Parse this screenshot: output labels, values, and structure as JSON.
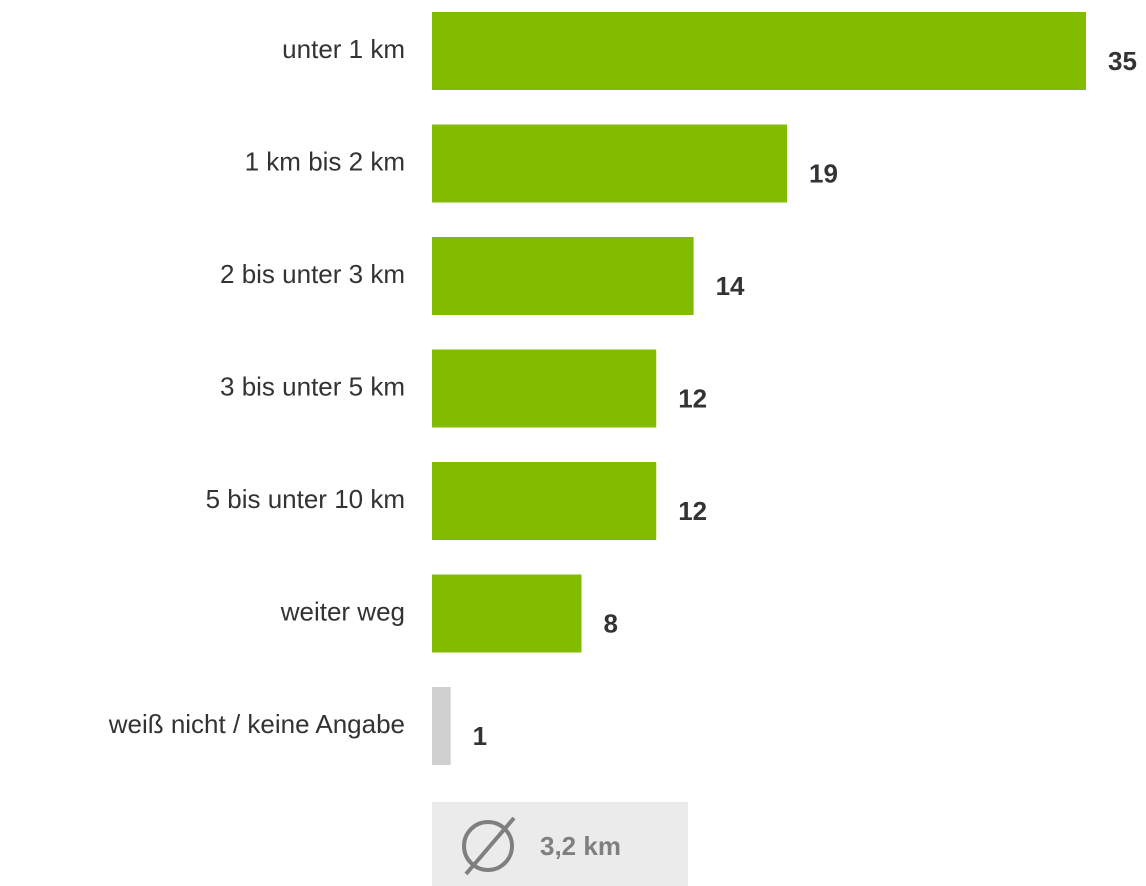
{
  "chart_data": {
    "type": "bar",
    "orientation": "horizontal",
    "categories": [
      "unter 1 km",
      "1 km bis 2 km",
      "2 bis unter 3 km",
      "3 bis unter 5 km",
      "5 bis unter 10 km",
      "weiter weg",
      "weiß nicht / keine Angabe"
    ],
    "values": [
      35,
      19,
      14,
      12,
      12,
      8,
      1
    ],
    "colors": [
      "#82bc00",
      "#82bc00",
      "#82bc00",
      "#82bc00",
      "#82bc00",
      "#82bc00",
      "#d0d0d0"
    ],
    "annotation": "3,2 km"
  }
}
